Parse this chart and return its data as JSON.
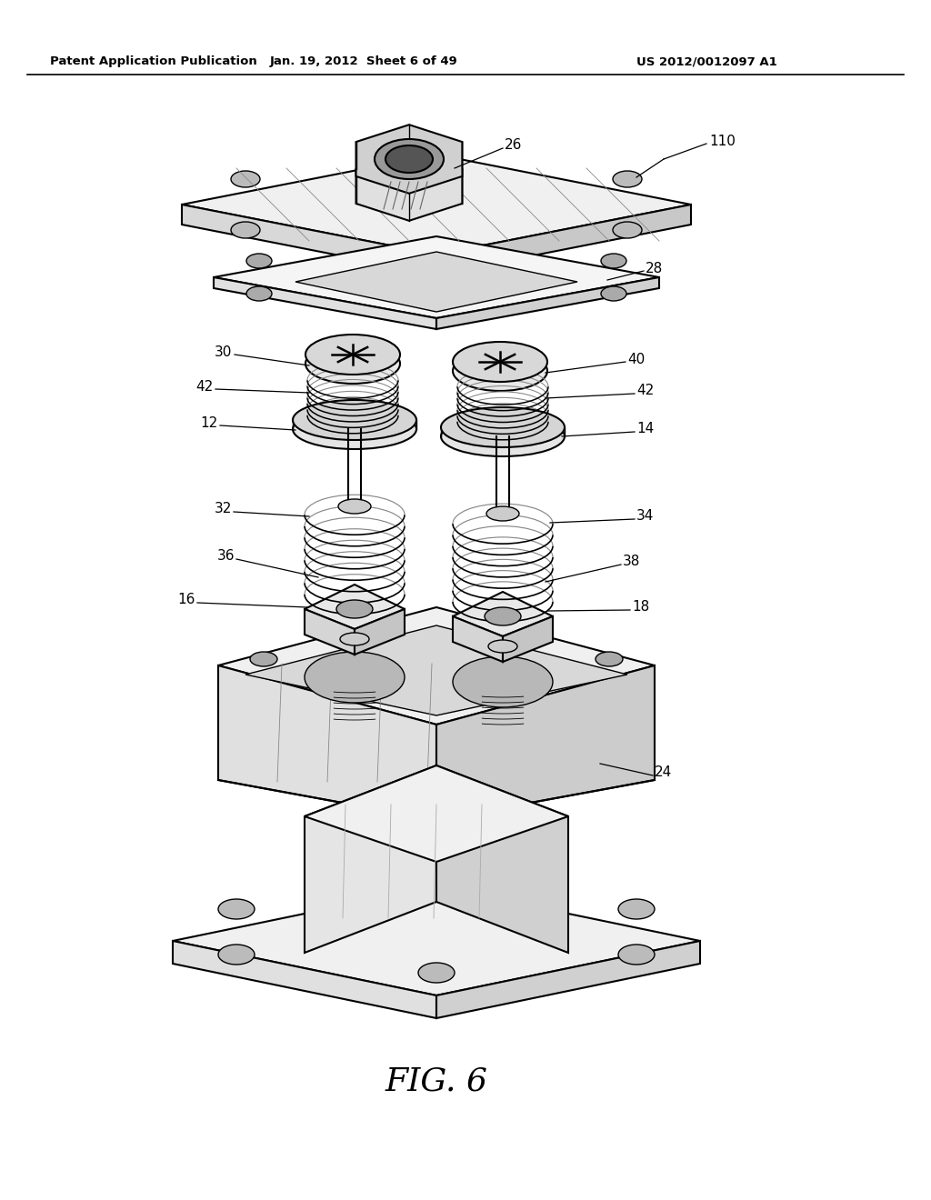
{
  "bg_color": "#ffffff",
  "line_color": "#000000",
  "header_left": "Patent Application Publication",
  "header_mid": "Jan. 19, 2012  Sheet 6 of 49",
  "header_right": "US 2012/0012097 A1",
  "fig_label": "FIG. 6",
  "fig_w": 10.24,
  "fig_h": 13.2,
  "dpi": 100
}
